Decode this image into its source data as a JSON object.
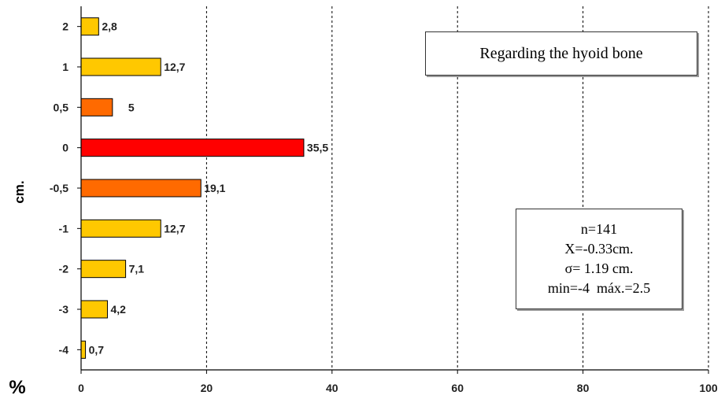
{
  "chart_data": {
    "type": "bar",
    "orientation": "horizontal",
    "categories": [
      "2",
      "1",
      "0,5",
      "0",
      "-0,5",
      "-1",
      "-2",
      "-3",
      "-4"
    ],
    "values": [
      2.8,
      12.7,
      5,
      35.5,
      19.1,
      12.7,
      7.1,
      4.2,
      0.7
    ],
    "value_labels": [
      "2,8",
      "12,7",
      "5",
      "35,5",
      "19,1",
      "12,7",
      "7,1",
      "4,2",
      "0,7"
    ],
    "bar_colors": [
      "#FFC800",
      "#FFC800",
      "#FF6A00",
      "#FF0000",
      "#FF6A00",
      "#FFC800",
      "#FFC800",
      "#FFC800",
      "#FFC800"
    ],
    "xlim": [
      0,
      100
    ],
    "x_ticks": [
      "0",
      "20",
      "40",
      "60",
      "80",
      "100"
    ],
    "xlabel": "%",
    "ylabel": "cm.",
    "grid": "vertical dashed"
  },
  "title_box": "Regarding the hyoid bone",
  "stats": [
    "n=141",
    "X=-0.33cm.",
    "σ= 1.19 cm.",
    "min=-4  máx.=2.5"
  ]
}
